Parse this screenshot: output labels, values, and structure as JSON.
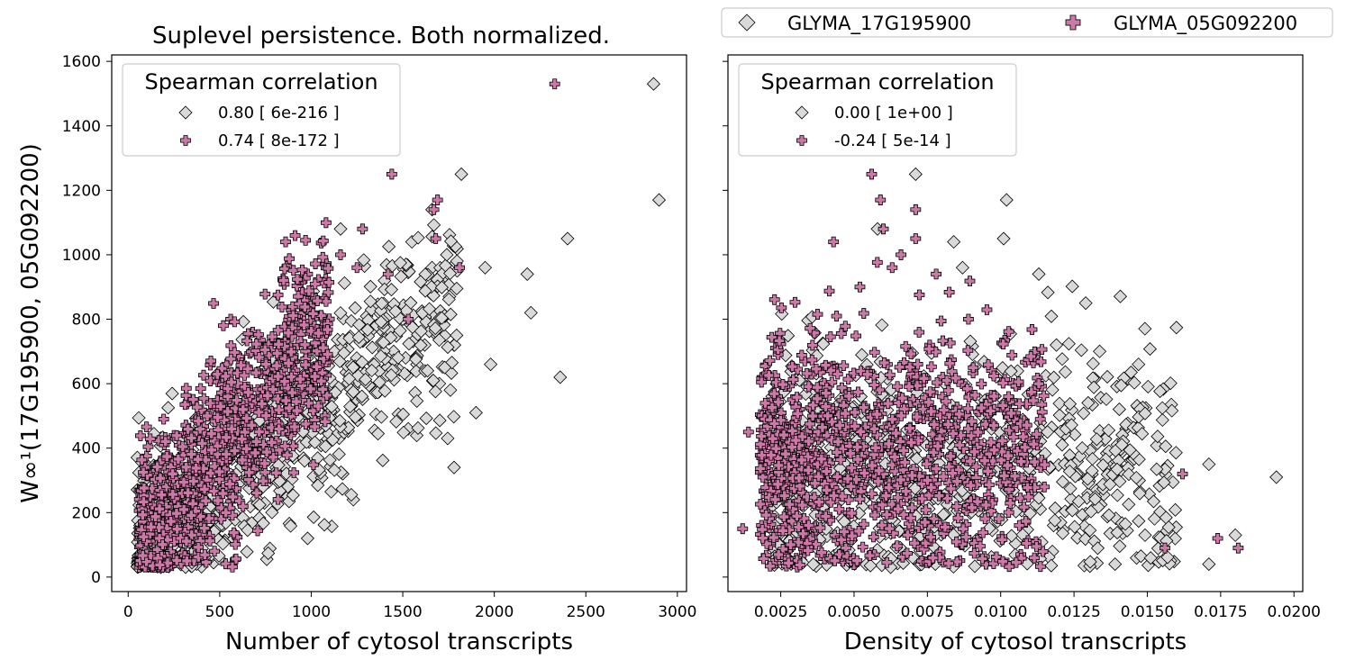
{
  "figure_legend": {
    "items": [
      {
        "label": "GLYMA_17G195900",
        "marker": "diamond",
        "color": "#d9d9d9"
      },
      {
        "label": "GLYMA_05G092200",
        "marker": "plus",
        "color": "#cc79a7"
      }
    ]
  },
  "chart_data": [
    {
      "type": "scatter",
      "title": "Suplevel persistence. Both normalized.",
      "xlabel": "Number of cytosol transcripts",
      "ylabel": "W∞¹(17G195900, 05G092200)",
      "xlim": [
        -90,
        3050
      ],
      "ylim": [
        -45,
        1620
      ],
      "xticks": [
        0,
        500,
        1000,
        1500,
        2000,
        2500,
        3000
      ],
      "xtick_labels": [
        "0",
        "500",
        "1000",
        "1500",
        "2000",
        "2500",
        "3000"
      ],
      "yticks": [
        0,
        200,
        400,
        600,
        800,
        1000,
        1200,
        1400,
        1600
      ],
      "ytick_labels": [
        "0",
        "200",
        "400",
        "600",
        "800",
        "1000",
        "1200",
        "1400",
        "1600"
      ],
      "grid": false,
      "legend": {
        "title": "Spearman correlation",
        "placement": "top-left",
        "entries": [
          "0.80 [ 6e-216 ]",
          "0.74 [ 8e-172 ]"
        ]
      },
      "series": [
        {
          "marker": "diamond",
          "color": "#d9d9d9",
          "points": [
            [
              2870,
              1530
            ],
            [
              2900,
              1170
            ],
            [
              1820,
              1250
            ],
            [
              2400,
              1050
            ],
            [
              2180,
              940
            ],
            [
              2200,
              820
            ],
            [
              1160,
              1080
            ],
            [
              1550,
              1040
            ],
            [
              1660,
              960
            ],
            [
              1950,
              960
            ],
            [
              2360,
              620
            ],
            [
              1980,
              660
            ],
            [
              1780,
              720
            ],
            [
              1900,
              510
            ],
            [
              1780,
              340
            ],
            [
              1230,
              240
            ],
            [
              980,
              120
            ],
            [
              1530,
              460
            ],
            [
              1660,
              1140
            ],
            [
              1400,
              920
            ],
            [
              1500,
              800
            ],
            [
              1700,
              600
            ],
            [
              1450,
              700
            ],
            [
              1620,
              720
            ],
            [
              1760,
              580
            ]
          ],
          "cloud": {
            "n": 800,
            "xrange": [
              50,
              1800
            ],
            "slope": 0.46,
            "intercept": 50,
            "spread": 150,
            "seed": 11
          }
        },
        {
          "marker": "plus",
          "color": "#cc79a7",
          "points": [
            [
              2330,
              1530
            ],
            [
              1440,
              1250
            ],
            [
              1690,
              1170
            ],
            [
              1670,
              1140
            ],
            [
              1680,
              1050
            ],
            [
              1280,
              1080
            ],
            [
              1160,
              1000
            ],
            [
              860,
              1040
            ],
            [
              1250,
              960
            ],
            [
              1810,
              960
            ],
            [
              1420,
              940
            ],
            [
              1530,
              800
            ],
            [
              980,
              940
            ],
            [
              520,
              780
            ],
            [
              560,
              800
            ],
            [
              680,
              760
            ]
          ],
          "cloud": {
            "n": 1000,
            "xrange": [
              60,
              1100
            ],
            "slope": 0.68,
            "intercept": 40,
            "spread": 140,
            "seed": 22
          }
        }
      ]
    },
    {
      "type": "scatter",
      "xlabel": "Density of cytosol transcripts",
      "xlim": [
        0.0007,
        0.0203
      ],
      "ylim": [
        -45,
        1620
      ],
      "xticks": [
        0.0025,
        0.005,
        0.0075,
        0.01,
        0.0125,
        0.015,
        0.0175,
        0.02
      ],
      "xtick_labels": [
        "0.0025",
        "0.0050",
        "0.0075",
        "0.0100",
        "0.0125",
        "0.0150",
        "0.0175",
        "0.0200"
      ],
      "yticks": [
        0,
        200,
        400,
        600,
        800,
        1000,
        1200,
        1400,
        1600
      ],
      "grid": false,
      "legend": {
        "title": "Spearman correlation",
        "placement": "top-left",
        "entries": [
          "0.00 [ 1e+00 ]",
          "-0.24 [ 5e-14 ]"
        ]
      },
      "series": [
        {
          "marker": "diamond",
          "color": "#d9d9d9",
          "points": [
            [
              0.0071,
              1250
            ],
            [
              0.0102,
              1170
            ],
            [
              0.0101,
              1050
            ],
            [
              0.0113,
              940
            ],
            [
              0.0129,
              850
            ],
            [
              0.0119,
              720
            ],
            [
              0.0147,
              660
            ],
            [
              0.0194,
              310
            ],
            [
              0.0171,
              350
            ],
            [
              0.018,
              130
            ],
            [
              0.0171,
              40
            ],
            [
              0.0139,
              40
            ],
            [
              0.0058,
              1080
            ],
            [
              0.0084,
              1040
            ],
            [
              0.0087,
              960
            ]
          ],
          "cloud": {
            "n": 800,
            "xrange": [
              0.0022,
              0.016
            ],
            "ymean": 330,
            "spread": 190,
            "seed": 33
          }
        },
        {
          "marker": "plus",
          "color": "#cc79a7",
          "points": [
            [
              0.0056,
              1250
            ],
            [
              0.0059,
              1170
            ],
            [
              0.0071,
              1140
            ],
            [
              0.0071,
              1050
            ],
            [
              0.006,
              1080
            ],
            [
              0.0066,
              1000
            ],
            [
              0.0043,
              1040
            ],
            [
              0.0063,
              960
            ],
            [
              0.0095,
              40
            ],
            [
              0.0012,
              150
            ],
            [
              0.0014,
              450
            ],
            [
              0.0181,
              90
            ],
            [
              0.0174,
              120
            ],
            [
              0.0162,
              320
            ],
            [
              0.0156,
              90
            ],
            [
              0.0078,
              940
            ],
            [
              0.0089,
              800
            ],
            [
              0.0052,
              900
            ]
          ],
          "cloud": {
            "n": 1000,
            "xrange": [
              0.0018,
              0.0115
            ],
            "ymean": 380,
            "spread": 190,
            "seed": 44
          }
        }
      ]
    }
  ]
}
